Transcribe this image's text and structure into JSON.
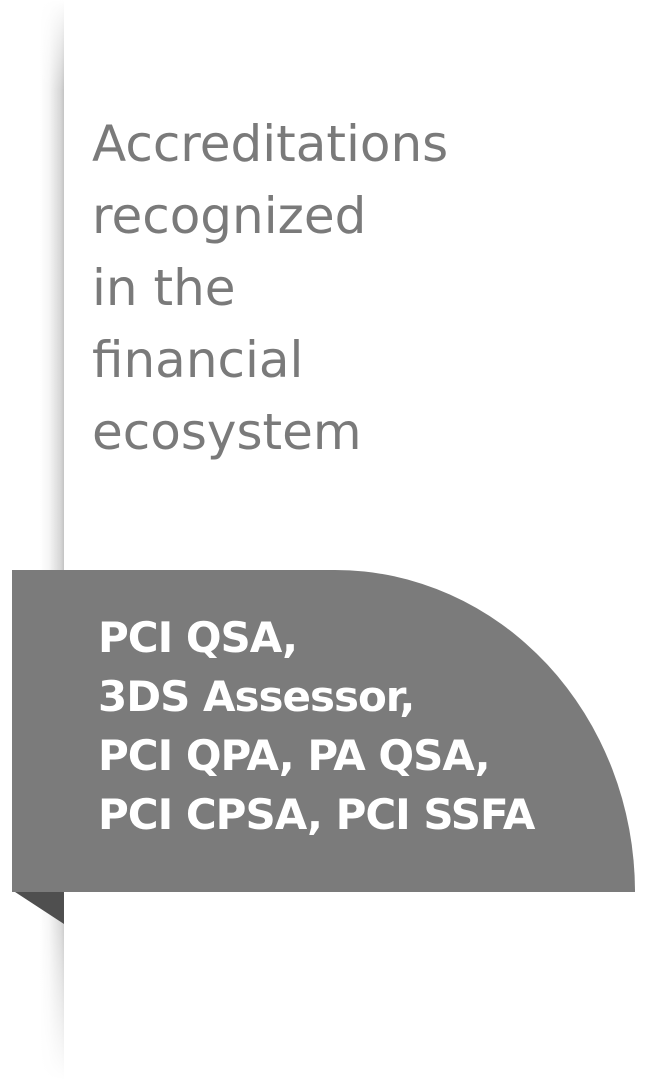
{
  "heading": {
    "lines": [
      "Accreditations",
      "recognized",
      "in the",
      "financial",
      "ecosystem"
    ]
  },
  "ribbon": {
    "lines": [
      "PCI QSA,",
      "3DS Assessor,",
      "PCI QPA, PA QSA,",
      "PCI CPSA, PCI SSFA"
    ]
  },
  "colors": {
    "heading_text": "#7a7a7a",
    "ribbon_background": "#7b7b7b",
    "ribbon_fold": "#4f4f4f",
    "ribbon_text": "#ffffff",
    "page_background": "#ffffff"
  }
}
